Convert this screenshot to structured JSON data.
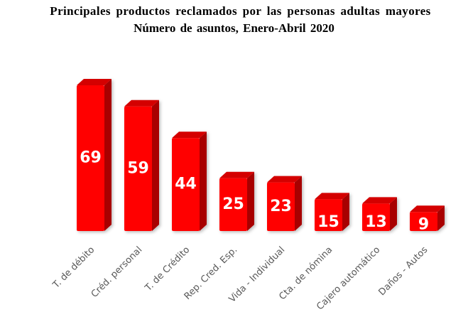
{
  "chart_data": {
    "type": "bar",
    "title": "Principales productos reclamados por las personas adultas mayores",
    "subtitle": "Número de asuntos, Enero-Abril 2020",
    "categories": [
      "T. de débito",
      "Créd. personal",
      "T. de Crédito",
      "Rep. Cred. Esp.",
      "Vida - Individual",
      "Cta. de nómina",
      "Cajero automático",
      "Daños - Autos"
    ],
    "values": [
      69,
      59,
      44,
      25,
      23,
      15,
      13,
      9
    ],
    "data_labels": [
      "69",
      "59",
      "44",
      "25",
      "23",
      "15",
      "13",
      "9"
    ],
    "ylim": [
      0,
      73
    ],
    "grid": false,
    "legend": "none",
    "bar_color": "#ff0000",
    "bar_side_color": "#a80000",
    "bar_top_color": "#d40000"
  }
}
